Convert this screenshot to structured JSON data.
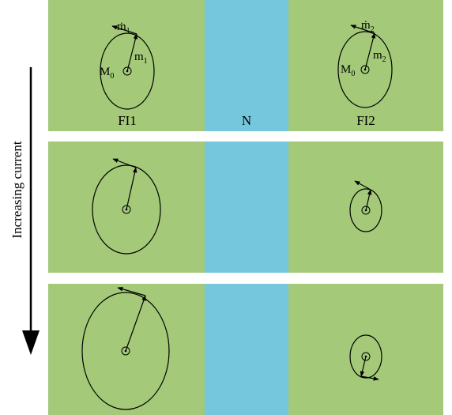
{
  "colors": {
    "ferromagnet": "#a3c979",
    "normal_metal": "#74c7dc",
    "stroke": "#000000",
    "background": "#ffffff"
  },
  "axis_label": "Increasing current",
  "layers": {
    "left": "FI1",
    "middle": "N",
    "right": "FI2"
  },
  "panel1_labels": {
    "left_mdot": "ṁ",
    "left_mdot_sub": "1",
    "left_m": "m",
    "left_m_sub": "1",
    "left_M": "M",
    "left_M_sub": "0",
    "right_mdot": "ṁ",
    "right_mdot_sub": "2",
    "right_m": "m",
    "right_m_sub": "2",
    "right_M": "M",
    "right_M_sub": "0"
  }
}
